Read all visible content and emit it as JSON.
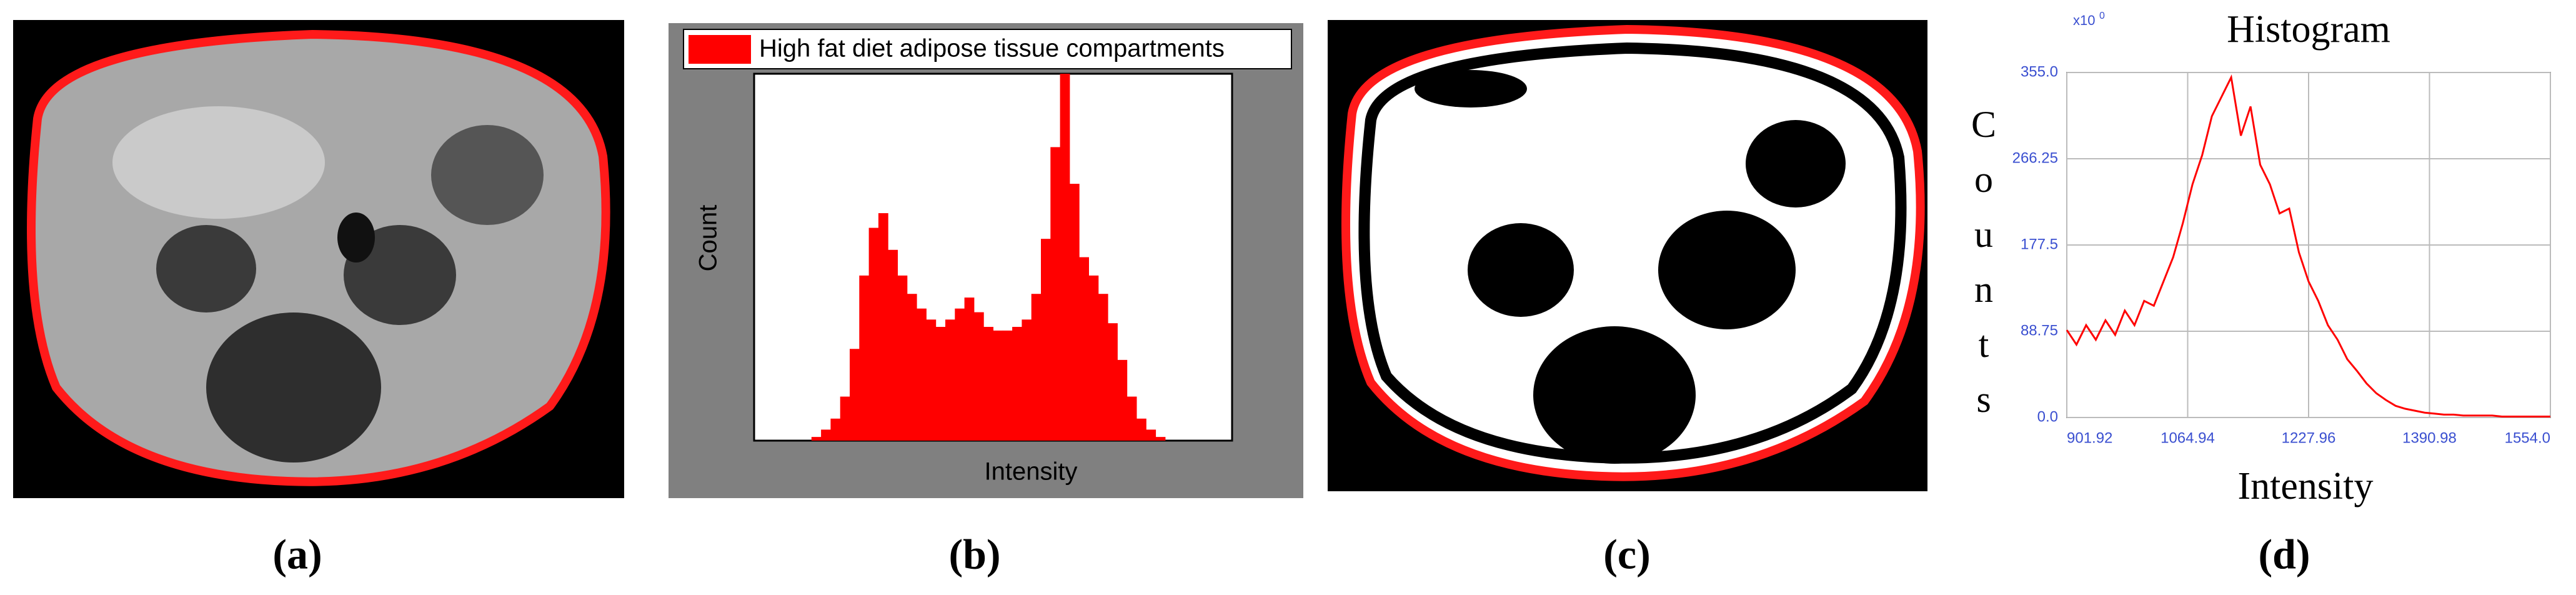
{
  "captions": [
    "(a)",
    "(b)",
    "(c)",
    "(d)"
  ],
  "chart_data": [
    {
      "type": "bar",
      "xlabel": "Intensity",
      "ylabel": "Count",
      "ylim": [
        0,
        100
      ],
      "series": [
        {
          "name": "High fat diet adipose tissue compartments",
          "color": "#ff0000",
          "values": [
            0,
            0,
            0,
            0,
            0,
            0,
            1,
            3,
            6,
            12,
            25,
            45,
            58,
            62,
            52,
            45,
            40,
            36,
            33,
            31,
            33,
            36,
            39,
            35,
            31,
            30,
            30,
            31,
            33,
            40,
            55,
            80,
            100,
            70,
            50,
            45,
            40,
            32,
            22,
            12,
            6,
            3,
            1,
            0,
            0,
            0,
            0,
            0,
            0,
            0
          ]
        }
      ]
    },
    {
      "type": "line",
      "title": "Histogram",
      "xlabel": "Intensity",
      "ylabel": "Counts",
      "annotation": "x10",
      "annotation_exponent": "0",
      "x": [
        901.92,
        914.96,
        928.0,
        941.04,
        954.08,
        967.12,
        980.16,
        993.2,
        1006.24,
        1019.28,
        1032.32,
        1045.36,
        1058.4,
        1071.44,
        1084.48,
        1097.52,
        1110.56,
        1123.6,
        1136.64,
        1149.68,
        1162.72,
        1175.76,
        1188.8,
        1201.84,
        1214.88,
        1227.92,
        1240.96,
        1254.0,
        1267.04,
        1280.08,
        1293.12,
        1306.16,
        1319.2,
        1332.24,
        1345.28,
        1358.32,
        1371.36,
        1384.4,
        1397.44,
        1410.48,
        1423.52,
        1436.56,
        1449.6,
        1462.64,
        1475.68,
        1488.72,
        1501.76,
        1514.8,
        1527.84,
        1540.88,
        1553.92
      ],
      "xlim": [
        901.92,
        1554.0
      ],
      "ylim": [
        0,
        355
      ],
      "xticks": [
        901.92,
        1064.94,
        1227.96,
        1390.98,
        {
          "value": 1554.0,
          "label": "1554.0"
        }
      ],
      "yticks": [
        {
          "value": 0,
          "label": "0.0"
        },
        88.75,
        177.5,
        266.25,
        {
          "value": 355,
          "label": "355.0"
        }
      ],
      "grid": true,
      "series": [
        {
          "color": "#ff0000",
          "values": [
            90,
            75,
            95,
            80,
            100,
            85,
            110,
            95,
            120,
            115,
            140,
            165,
            200,
            240,
            270,
            310,
            330,
            350,
            290,
            320,
            260,
            240,
            210,
            215,
            170,
            140,
            120,
            95,
            80,
            60,
            48,
            35,
            25,
            18,
            12,
            9,
            7,
            5,
            4,
            3,
            3,
            2,
            2,
            2,
            2,
            1,
            1,
            1,
            1,
            1,
            1
          ]
        }
      ]
    }
  ]
}
